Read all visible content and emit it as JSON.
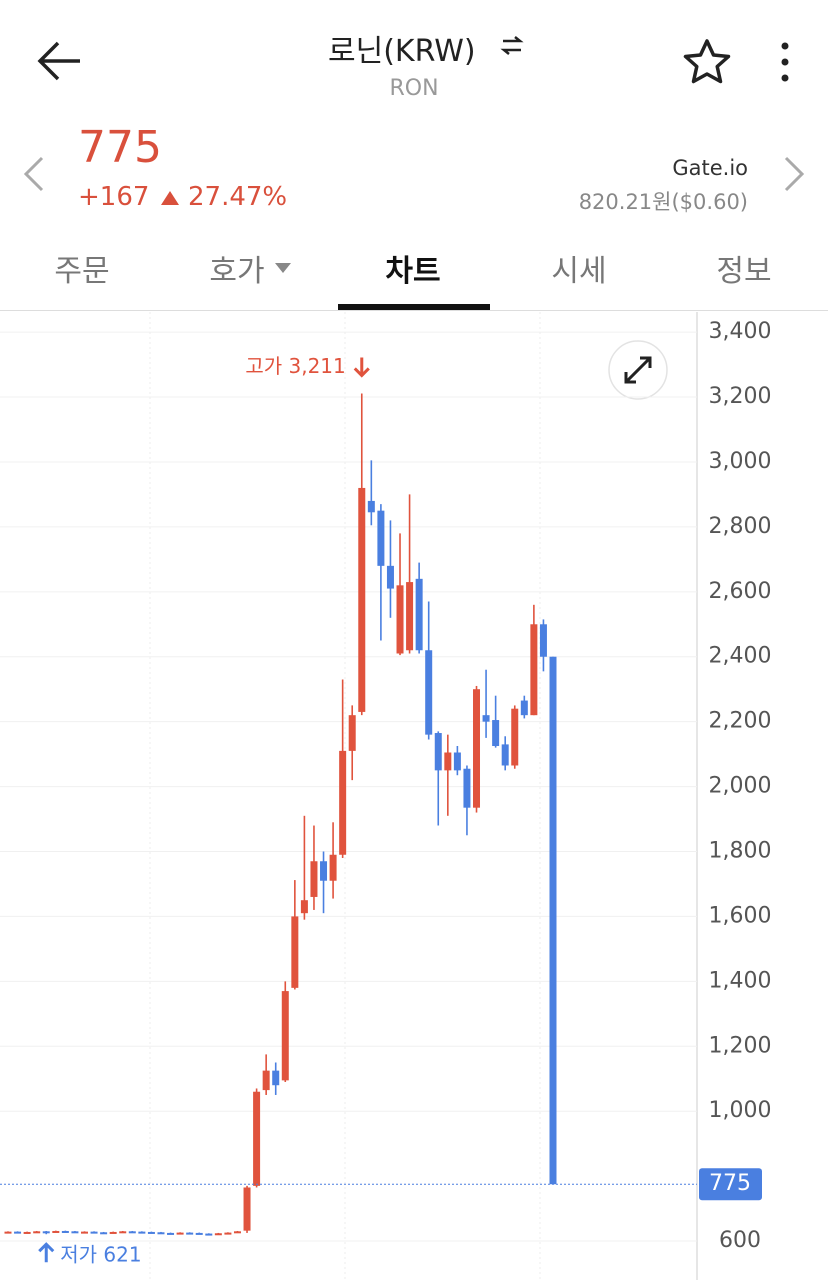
{
  "header": {
    "title": "로닌(KRW)",
    "subtitle": "RON"
  },
  "price": {
    "current": "775",
    "change": "+167",
    "change_percent": "27.47%",
    "exchange": "Gate.io",
    "exchange_price": "820.21원($0.60)"
  },
  "tabs": [
    "주문",
    "호가",
    "차트",
    "시세",
    "정보"
  ],
  "chart_data": {
    "type": "candlestick",
    "open": [
      628,
      629,
      627,
      628,
      630,
      629,
      631,
      630,
      628,
      629,
      627,
      626,
      628,
      630,
      629,
      628,
      627,
      625,
      624,
      626,
      625,
      623,
      622,
      624,
      626,
      632,
      770,
      1065,
      1125,
      1095,
      1380,
      1610,
      1660,
      1770,
      1710,
      1790,
      2110,
      2230,
      2880,
      2850,
      2680,
      2410,
      2420,
      2640,
      2420,
      2165,
      2050,
      2105,
      2055,
      1935,
      2220,
      2205,
      2130,
      2065,
      2265,
      2220,
      2500,
      2400
    ],
    "high": [
      630,
      630,
      629,
      631,
      631,
      632,
      632,
      631,
      630,
      630,
      628,
      629,
      631,
      631,
      630,
      629,
      628,
      626,
      627,
      627,
      626,
      624,
      625,
      627,
      631,
      770,
      1070,
      1175,
      1150,
      1400,
      1712,
      1910,
      1880,
      1800,
      1890,
      2330,
      2250,
      3211,
      3005,
      2870,
      2820,
      2780,
      2900,
      2690,
      2570,
      2170,
      2160,
      2125,
      2065,
      2310,
      2360,
      2280,
      2155,
      2250,
      2280,
      2560,
      2515,
      2400
    ],
    "low": [
      627,
      626,
      626,
      627,
      621,
      628,
      629,
      627,
      627,
      626,
      625,
      625,
      627,
      628,
      627,
      626,
      624,
      623,
      623,
      624,
      622,
      622,
      622,
      623,
      625,
      625,
      765,
      1050,
      1050,
      1090,
      1375,
      1590,
      1620,
      1610,
      1655,
      1780,
      2020,
      2220,
      2805,
      2450,
      2520,
      2405,
      2410,
      2410,
      2145,
      1880,
      1910,
      2035,
      1850,
      1920,
      2150,
      2120,
      2050,
      2055,
      2210,
      2220,
      2355,
      775
    ],
    "close": [
      629,
      627,
      628,
      630,
      629,
      631,
      630,
      628,
      629,
      627,
      626,
      628,
      630,
      629,
      628,
      627,
      625,
      624,
      626,
      625,
      623,
      622,
      624,
      626,
      630,
      765,
      1060,
      1125,
      1080,
      1370,
      1600,
      1650,
      1770,
      1710,
      1790,
      2110,
      2220,
      2920,
      2845,
      2680,
      2610,
      2620,
      2630,
      2420,
      2160,
      2050,
      2105,
      2050,
      1935,
      2300,
      2200,
      2125,
      2065,
      2240,
      2220,
      2500,
      2400,
      775
    ],
    "up_color": "#e0533d",
    "down_color": "#4a7fe0",
    "ylim": [
      480,
      3462
    ],
    "yticks": [
      {
        "value": 3400,
        "label": "3,400"
      },
      {
        "value": 3200,
        "label": "3,200"
      },
      {
        "value": 3000,
        "label": "3,000"
      },
      {
        "value": 2800,
        "label": "2,800"
      },
      {
        "value": 2600,
        "label": "2,600"
      },
      {
        "value": 2400,
        "label": "2,400"
      },
      {
        "value": 2200,
        "label": "2,200"
      },
      {
        "value": 2000,
        "label": "2,000"
      },
      {
        "value": 1800,
        "label": "1,800"
      },
      {
        "value": 1600,
        "label": "1,600"
      },
      {
        "value": 1400,
        "label": "1,400"
      },
      {
        "value": 1200,
        "label": "1,200"
      },
      {
        "value": 1000,
        "label": "1,000"
      },
      600
    ],
    "grid": true,
    "current_price": 775,
    "high_annotation": "고가 3,211",
    "low_annotation": "저가 621"
  }
}
